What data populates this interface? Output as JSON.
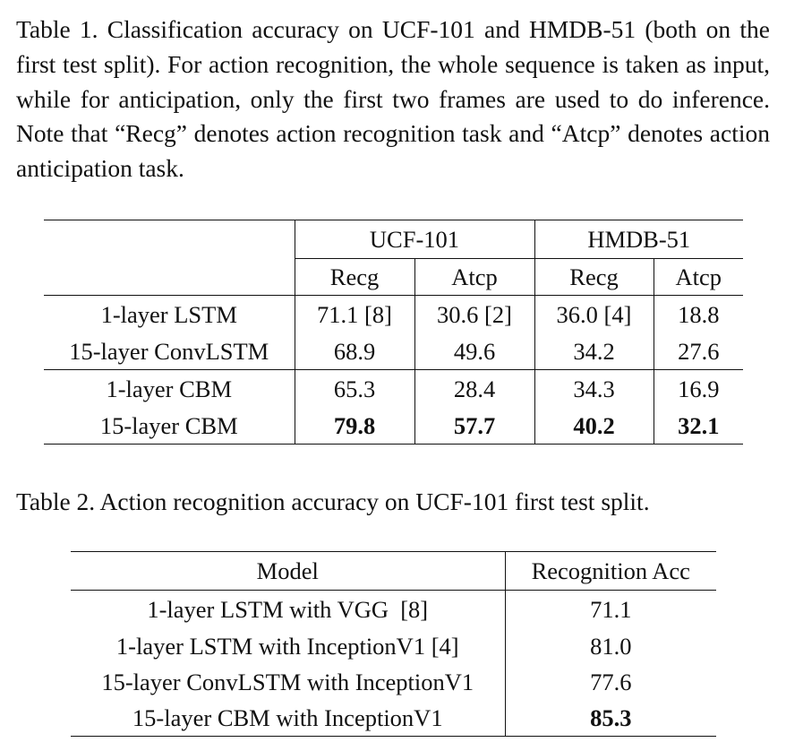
{
  "table1": {
    "caption": "Table 1. Classification accuracy on UCF-101 and HMDB-51 (both on the first test split). For action recognition, the whole sequence is taken as input, while for anticipation, only the first two frames are used to do inference. Note that “Recg” denotes action recognition task and “Atcp” denotes action anticipation task.",
    "groups": [
      "UCF-101",
      "HMDB-51"
    ],
    "subheaders": [
      "Recg",
      "Atcp",
      "Recg",
      "Atcp"
    ],
    "rows": [
      {
        "model": "1-layer LSTM",
        "values": [
          "71.1 [8]",
          "30.6 [2]",
          "36.0 [4]",
          "18.8"
        ]
      },
      {
        "model": "15-layer ConvLSTM",
        "values": [
          "68.9",
          "49.6",
          "34.2",
          "27.6"
        ]
      },
      {
        "model": "1-layer CBM",
        "values": [
          "65.3",
          "28.4",
          "34.3",
          "16.9"
        ]
      },
      {
        "model": "15-layer CBM",
        "values": [
          "79.8",
          "57.7",
          "40.2",
          "32.1"
        ]
      }
    ]
  },
  "table2": {
    "caption": "Table 2. Action recognition accuracy on UCF-101 first test split.",
    "headers": [
      "Model",
      "Recognition Acc"
    ],
    "rows": [
      {
        "model": "1-layer LSTM with VGG  [8]",
        "acc": "71.1"
      },
      {
        "model": "1-layer LSTM with InceptionV1 [4]",
        "acc": "81.0"
      },
      {
        "model": "15-layer ConvLSTM with InceptionV1",
        "acc": "77.6"
      },
      {
        "model": "15-layer CBM with InceptionV1",
        "acc": "85.3"
      }
    ]
  }
}
